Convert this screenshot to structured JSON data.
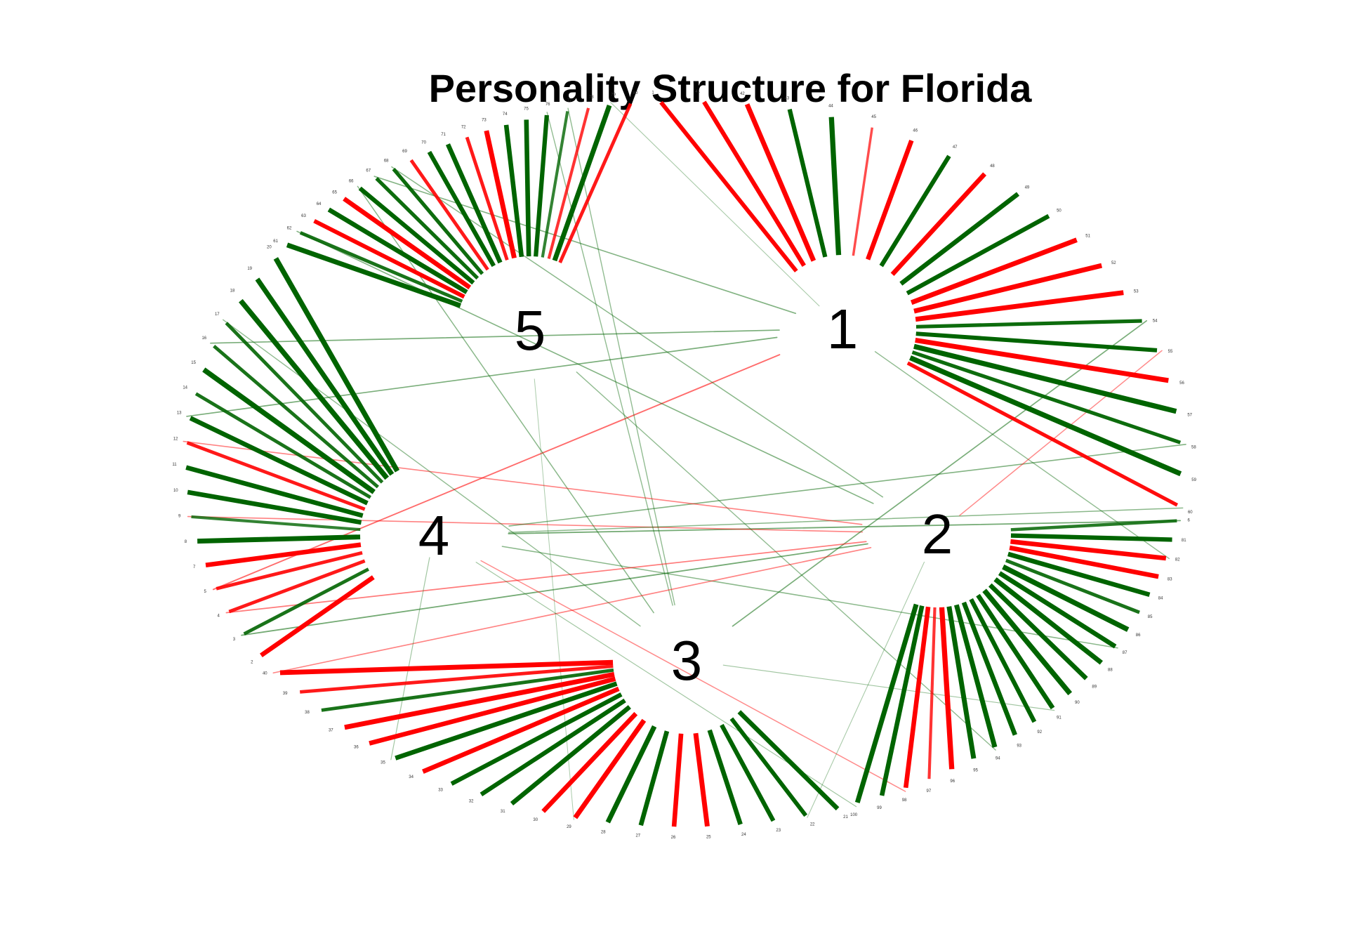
{
  "title": "Personality Structure for Florida",
  "colors": {
    "positive": "#006400",
    "negative": "#ff0000"
  },
  "factors": [
    {
      "id": "1",
      "label": "1",
      "items": [
        [
          1,
          -0.7
        ],
        [
          41,
          -0.75
        ],
        [
          42,
          -0.85
        ],
        [
          43,
          0.75
        ],
        [
          44,
          0.9
        ],
        [
          45,
          -0.35
        ],
        [
          46,
          -0.8
        ],
        [
          47,
          0.75
        ],
        [
          48,
          -0.8
        ],
        [
          49,
          0.8
        ],
        [
          50,
          0.75
        ],
        [
          51,
          -0.85
        ],
        [
          52,
          -0.85
        ],
        [
          53,
          -0.85
        ],
        [
          54,
          0.6
        ],
        [
          55,
          0.7
        ],
        [
          56,
          -0.85
        ],
        [
          57,
          0.9
        ],
        [
          58,
          0.6
        ],
        [
          59,
          0.9
        ],
        [
          60,
          -0.6
        ]
      ]
    },
    {
      "id": "2",
      "label": "2",
      "items": [
        [
          6,
          0.5
        ],
        [
          81,
          0.75
        ],
        [
          82,
          -0.8
        ],
        [
          83,
          -0.8
        ],
        [
          84,
          0.8
        ],
        [
          85,
          0.55
        ],
        [
          86,
          0.9
        ],
        [
          87,
          0.8
        ],
        [
          88,
          0.85
        ],
        [
          89,
          0.8
        ],
        [
          90,
          0.9
        ],
        [
          91,
          0.8
        ],
        [
          92,
          0.75
        ],
        [
          93,
          0.8
        ],
        [
          94,
          0.85
        ],
        [
          95,
          0.85
        ],
        [
          96,
          -0.9
        ],
        [
          97,
          -0.45
        ],
        [
          98,
          -0.8
        ],
        [
          99,
          0.8
        ],
        [
          100,
          0.85
        ]
      ]
    },
    {
      "id": "3",
      "label": "3",
      "items": [
        [
          21,
          0.8
        ],
        [
          22,
          0.7
        ],
        [
          23,
          0.75
        ],
        [
          24,
          0.8
        ],
        [
          25,
          -0.85
        ],
        [
          26,
          -0.8
        ],
        [
          27,
          0.8
        ],
        [
          28,
          0.85
        ],
        [
          29,
          -0.85
        ],
        [
          30,
          -0.8
        ],
        [
          31,
          0.8
        ],
        [
          32,
          0.75
        ],
        [
          33,
          0.75
        ],
        [
          34,
          -0.8
        ],
        [
          35,
          0.8
        ],
        [
          36,
          -0.8
        ],
        [
          37,
          -0.85
        ],
        [
          38,
          0.55
        ],
        [
          39,
          -0.55
        ],
        [
          40,
          -0.85
        ]
      ]
    },
    {
      "id": "4",
      "label": "4",
      "items": [
        [
          2,
          -0.8
        ],
        [
          3,
          0.55
        ],
        [
          4,
          -0.55
        ],
        [
          5,
          -0.55
        ],
        [
          7,
          -0.8
        ],
        [
          8,
          0.85
        ],
        [
          9,
          0.45
        ],
        [
          10,
          0.8
        ],
        [
          11,
          0.8
        ],
        [
          12,
          -0.55
        ],
        [
          13,
          0.8
        ],
        [
          14,
          0.55
        ],
        [
          15,
          0.9
        ],
        [
          16,
          0.55
        ],
        [
          17,
          0.55
        ],
        [
          18,
          0.9
        ],
        [
          19,
          0.85
        ],
        [
          20,
          0.9
        ]
      ]
    },
    {
      "id": "5",
      "label": "5",
      "items": [
        [
          61,
          0.85
        ],
        [
          62,
          0.55
        ],
        [
          63,
          -0.7
        ],
        [
          64,
          0.8
        ],
        [
          65,
          -0.8
        ],
        [
          66,
          0.75
        ],
        [
          67,
          0.6
        ],
        [
          68,
          0.6
        ],
        [
          69,
          -0.55
        ],
        [
          70,
          0.75
        ],
        [
          71,
          0.8
        ],
        [
          72,
          -0.55
        ],
        [
          73,
          -0.85
        ],
        [
          74,
          0.8
        ],
        [
          75,
          0.8
        ],
        [
          76,
          0.75
        ],
        [
          77,
          0.45
        ],
        [
          78,
          -0.45
        ],
        [
          79,
          0.85
        ],
        [
          80,
          -0.55
        ]
      ]
    }
  ],
  "cross_loadings": [
    [
      16,
      "1",
      0.45
    ],
    [
      13,
      "1",
      0.45
    ],
    [
      6,
      "4",
      0.5
    ],
    [
      9,
      "2",
      -0.4
    ],
    [
      5,
      "1",
      -0.55
    ],
    [
      3,
      "2",
      0.5
    ],
    [
      67,
      "1",
      0.4
    ],
    [
      62,
      "2",
      0.4
    ],
    [
      66,
      "3",
      0.35
    ],
    [
      76,
      "3",
      0.3
    ],
    [
      77,
      "3",
      0.3
    ],
    [
      60,
      "4",
      0.35
    ],
    [
      58,
      "4",
      0.4
    ],
    [
      54,
      "3",
      0.45
    ],
    [
      94,
      "5",
      0.3
    ],
    [
      87,
      "4",
      0.35
    ],
    [
      40,
      "2",
      -0.4
    ],
    [
      12,
      "2",
      -0.4
    ],
    [
      4,
      "2",
      -0.45
    ],
    [
      17,
      "3",
      0.3
    ],
    [
      68,
      "2",
      0.35
    ],
    [
      79,
      "1",
      0.15
    ],
    [
      91,
      "3",
      0.2
    ],
    [
      98,
      "4",
      -0.35
    ],
    [
      22,
      "2",
      0.15
    ],
    [
      29,
      "5",
      0.12
    ],
    [
      82,
      "1",
      0.3
    ],
    [
      100,
      "4",
      0.2
    ],
    [
      55,
      "2",
      -0.35
    ],
    [
      35,
      "4",
      0.2
    ]
  ]
}
